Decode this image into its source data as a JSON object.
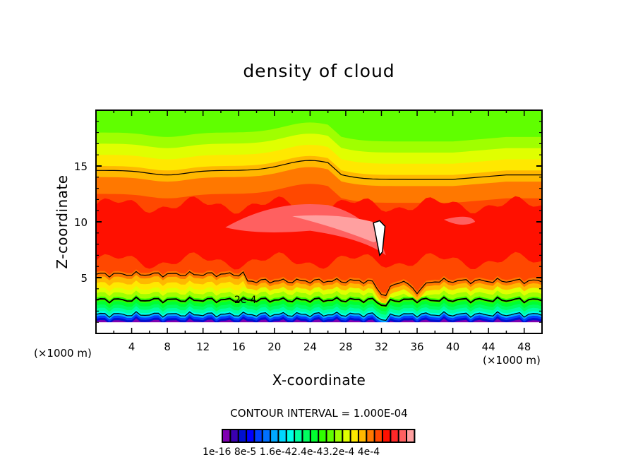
{
  "chart_data": {
    "type": "heatmap",
    "subtype": "filled-contour",
    "title": "density of cloud",
    "xlabel": "X-coordinate",
    "ylabel": "Z-coordinate",
    "x_unit_label": "(×1000 m)",
    "xlim": [
      0,
      50
    ],
    "ylim": [
      0,
      20
    ],
    "x_ticks": [
      4,
      8,
      12,
      16,
      20,
      24,
      28,
      32,
      36,
      40,
      44,
      48
    ],
    "x_minor_step": 2,
    "y_ticks": [
      5,
      10,
      15
    ],
    "y_minor_step": 1,
    "contour_interval_text": "CONTOUR INTERVAL = 1.000E-04",
    "contour_interval": 0.0001,
    "contour_line_labels": [
      {
        "text": "2e-4",
        "x": 15.5,
        "z": 2.9
      }
    ],
    "colorbar": {
      "colors": [
        "#7f00b0",
        "#3a00b0",
        "#0010d0",
        "#0000ff",
        "#0040ff",
        "#0070ff",
        "#00a8ff",
        "#00d8ff",
        "#00ffe8",
        "#00ffa0",
        "#00ff60",
        "#00ff30",
        "#30ff00",
        "#60ff00",
        "#a0ff00",
        "#e0ff00",
        "#ffe800",
        "#ffb800",
        "#ff7800",
        "#ff4800",
        "#ff1000",
        "#ff2828",
        "#ff6060",
        "#ffa0a0"
      ],
      "tick_labels": [
        "1e-16",
        "8e-5",
        "1.6e-4",
        "2.4e-4",
        "3.2e-4",
        "4e-4"
      ],
      "label_text": "1e-16 8e-5 1.6e-42.4e-43.2e-4 4e-4"
    },
    "bands_description_levels": [
      {
        "z_top": 20.0,
        "level": 13
      },
      {
        "z_top": 18.0,
        "level": 14
      },
      {
        "z_top": 17.0,
        "level": 15
      },
      {
        "z_top": 16.0,
        "level": 16
      },
      {
        "z_top": 15.0,
        "level": 17
      },
      {
        "z_top": 14.0,
        "level": 18
      },
      {
        "z_top": 12.5,
        "level": 19
      },
      {
        "z_top": 11.5,
        "level": 20
      },
      {
        "z_top": 6.5,
        "level": 19
      },
      {
        "z_top": 5.5,
        "level": 18
      },
      {
        "z_top": 5.0,
        "level": 17
      },
      {
        "z_top": 4.5,
        "level": 16
      },
      {
        "z_top": 4.0,
        "level": 15
      },
      {
        "z_top": 3.6,
        "level": 14
      },
      {
        "z_top": 3.2,
        "level": 12
      },
      {
        "z_top": 2.8,
        "level": 11
      },
      {
        "z_top": 2.5,
        "level": 10
      },
      {
        "z_top": 2.2,
        "level": 9
      },
      {
        "z_top": 1.9,
        "level": 8
      },
      {
        "z_top": 1.7,
        "level": 6
      },
      {
        "z_top": 1.5,
        "level": 4
      },
      {
        "z_top": 1.3,
        "level": 2
      },
      {
        "z_top": 1.1,
        "level": 0
      }
    ]
  }
}
